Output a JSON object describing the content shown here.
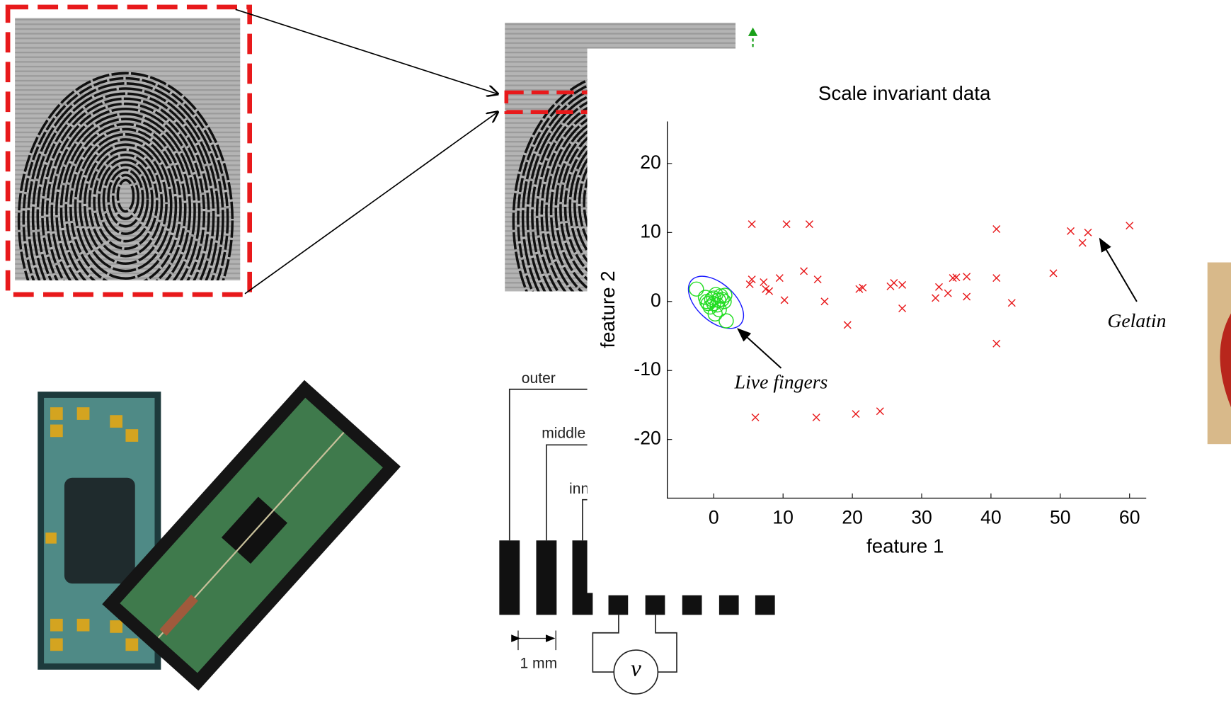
{
  "chart_data": {
    "type": "scatter",
    "title": "Scale invariant data",
    "xlabel": "feature 1",
    "ylabel": "feature 2",
    "xlim": [
      -6.7,
      62.4
    ],
    "ylim": [
      -28.5,
      26.1
    ],
    "xticks": [
      0,
      10,
      20,
      30,
      40,
      50,
      60
    ],
    "yticks": [
      -20,
      -10,
      0,
      10,
      20
    ],
    "series": [
      {
        "marker": "x",
        "color": "#e8191b",
        "x": [
          5.5,
          10.5,
          13.8,
          40.8,
          51.5,
          54,
          53.2,
          60,
          5.2,
          5.5,
          7.2,
          7.5,
          8,
          9.5,
          10.2,
          13,
          15,
          16,
          19.3,
          21,
          21.5,
          25.5,
          26,
          27.2,
          27.2,
          32,
          32.5,
          33.8,
          34.5,
          35,
          36.5,
          36.5,
          40.8,
          43,
          49,
          40.8,
          6,
          14.8,
          20.5,
          24
        ],
        "values": [
          11.2,
          11.2,
          11.2,
          10.5,
          10.2,
          10,
          8.5,
          11,
          2.5,
          3.2,
          2.8,
          1.8,
          1.5,
          3.4,
          0.2,
          4.4,
          3.2,
          0,
          -3.4,
          1.8,
          2,
          2.2,
          2.7,
          2.4,
          -1,
          0.5,
          2.1,
          1.2,
          3.4,
          3.5,
          3.6,
          0.7,
          3.4,
          -0.2,
          4.1,
          -6.1,
          -16.8,
          -16.8,
          -16.3,
          -15.9
        ]
      },
      {
        "marker": "o",
        "color": "#22dd22",
        "x": [
          -2.5,
          -1,
          0,
          0.5,
          1,
          -0.5,
          1.5,
          0.8,
          -1.2,
          0.3,
          1.8,
          0.2,
          1.2,
          -0.3,
          0.7,
          -0.8,
          1.6,
          0
        ],
        "values": [
          1.8,
          0,
          0.5,
          -0.5,
          0.8,
          -0.8,
          0,
          -1.2,
          0.6,
          1,
          -2.8,
          -1.8,
          0.3,
          0.3,
          0.2,
          -0.3,
          0.9,
          -0.3
        ]
      }
    ],
    "annotations": [
      "Live fingers",
      "Gelatin"
    ]
  },
  "diagram": {
    "labels": [
      "outer",
      "middle",
      "inner"
    ],
    "scale": "1 mm",
    "meter": "v"
  }
}
